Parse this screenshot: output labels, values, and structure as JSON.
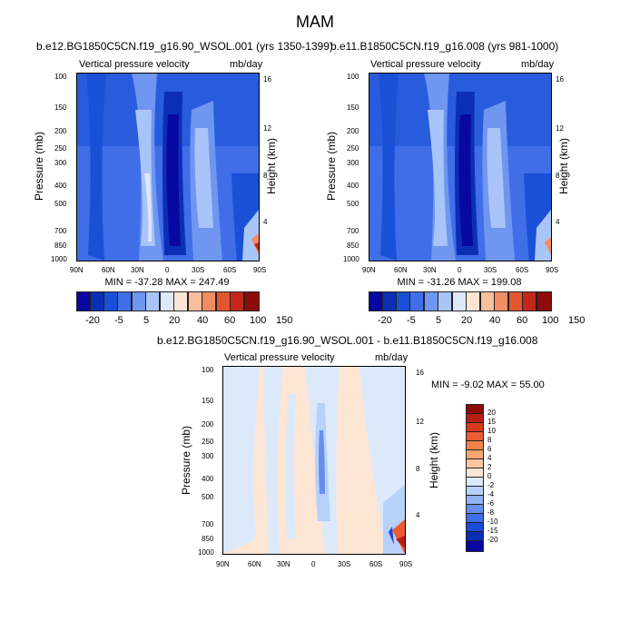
{
  "figure_title": "MAM",
  "panels": [
    {
      "title": "b.e12.BG1850C5CN.f19_g16.90_WSOL.001 (yrs 1350-1399)",
      "left_label": "Vertical pressure velocity",
      "right_label": "mb/day",
      "minmax": "MIN = -37.28  MAX = 247.49"
    },
    {
      "title": "b.e11.B1850C5CN.f19_g16.008 (yrs 981-1000)",
      "left_label": "Vertical pressure velocity",
      "right_label": "mb/day",
      "minmax": "MIN = -31.26  MAX = 199.08"
    },
    {
      "title": "b.e12.BG1850C5CN.f19_g16.90_WSOL.001 - b.e11.B1850C5CN.f19_g16.008",
      "left_label": "Vertical pressure velocity",
      "right_label": "mb/day",
      "minmax": "MIN = -9.02  MAX = 55.00"
    }
  ],
  "chart_data": {
    "type": "heatmap",
    "variable": "Vertical pressure velocity",
    "units": "mb/day",
    "season": "MAM",
    "xlabel": "",
    "ylabel": "Pressure (mb)",
    "y2label": "Height (km)",
    "x_ticks": [
      "90N",
      "60N",
      "30N",
      "0",
      "30S",
      "60S",
      "90S"
    ],
    "x_values": [
      90,
      60,
      30,
      0,
      -30,
      -60,
      -90
    ],
    "y_ticks": [
      100,
      150,
      200,
      250,
      300,
      400,
      500,
      700,
      850,
      1000
    ],
    "ylim": [
      1000,
      100
    ],
    "height_ticks": [
      16,
      12,
      8,
      4
    ],
    "height_km_at_pressure": {
      "16": 100,
      "12": 190,
      "8": 350,
      "4": 620
    },
    "colorbar_levels_fields": [
      -20,
      -5,
      5,
      20,
      40,
      60,
      100,
      150
    ],
    "colorbar_labels_diff": [
      "20",
      "15",
      "10",
      "8",
      "6",
      "4",
      "2",
      "0",
      "-2",
      "-4",
      "-6",
      "-8",
      "-10",
      "-15",
      "-20"
    ],
    "colors_fields": [
      "#08079f",
      "#0b2fb4",
      "#1a50d6",
      "#3f6ee8",
      "#6f96f0",
      "#a9c4f8",
      "#dde9fb",
      "#fde5d4",
      "#f9bf9c",
      "#f28c62",
      "#e25630",
      "#c4261a",
      "#8e0b0b"
    ],
    "colors_diff": [
      "#8e0b0b",
      "#b91d14",
      "#d83a20",
      "#ea5c33",
      "#f2824c",
      "#f7a573",
      "#fbc7a2",
      "#fde6d4",
      "#dce9fb",
      "#b8d1fa",
      "#8eb2f4",
      "#6690ec",
      "#3f6ee8",
      "#1c4bd6",
      "#0b2db1",
      "#08079f"
    ]
  }
}
